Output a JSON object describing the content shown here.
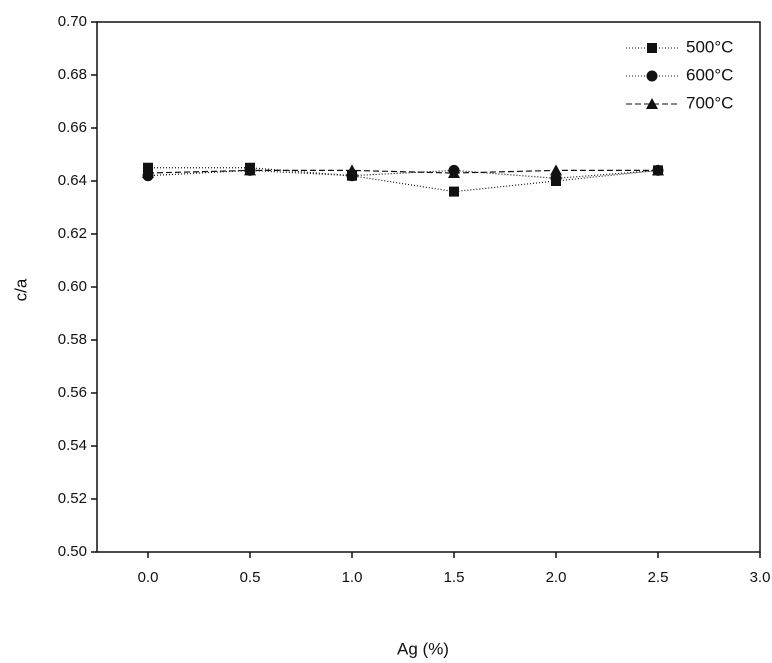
{
  "chart_data": {
    "type": "line",
    "x_label": "Ag (%)",
    "y_label": "c/a",
    "x": [
      0.0,
      0.5,
      1.0,
      1.5,
      2.0,
      2.5
    ],
    "series": [
      {
        "name": "500°C",
        "color": "#111111",
        "marker": "square",
        "dash": "1 2",
        "values": [
          0.645,
          0.645,
          0.642,
          0.636,
          0.64,
          0.644
        ]
      },
      {
        "name": "600°C",
        "color": "#111111",
        "marker": "circle",
        "dash": "1 2",
        "values": [
          0.642,
          0.644,
          0.642,
          0.644,
          0.641,
          0.644
        ]
      },
      {
        "name": "700°C",
        "color": "#111111",
        "marker": "triangle",
        "dash": "6 3",
        "values": [
          0.643,
          0.644,
          0.644,
          0.643,
          0.644,
          0.644
        ]
      }
    ],
    "xlim": [
      -0.25,
      3.0
    ],
    "xticks": [
      {
        "value": 0,
        "label": "0.0"
      },
      0.5,
      {
        "value": 1,
        "label": "1.0"
      },
      1.5,
      {
        "value": 2,
        "label": "2.0"
      },
      2.5,
      {
        "value": 3,
        "label": "3.0"
      }
    ],
    "ylim": [
      0.5,
      0.7
    ],
    "yticks": [
      {
        "value": 0.5,
        "label": "0.50"
      },
      0.52,
      0.54,
      0.56,
      0.58,
      {
        "value": 0.6,
        "label": "0.60"
      },
      0.62,
      0.64,
      0.66,
      0.68,
      {
        "value": 0.7,
        "label": "0.70"
      }
    ],
    "grid": false,
    "legend": "top-right"
  }
}
